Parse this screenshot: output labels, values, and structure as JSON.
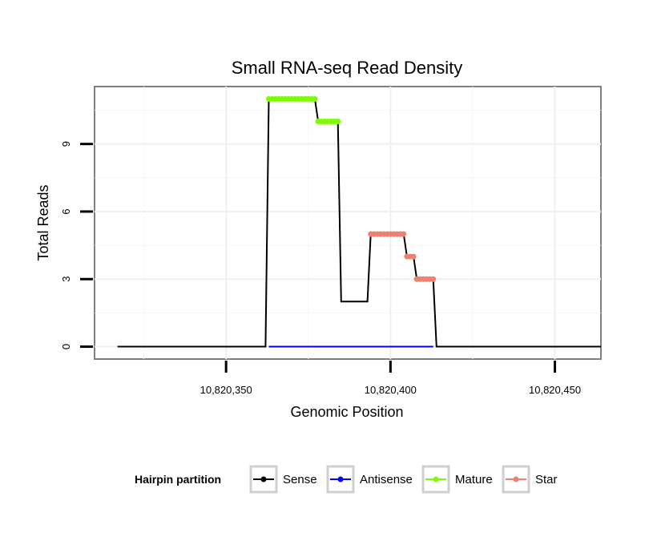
{
  "chart_data": {
    "type": "line",
    "title": "Small RNA-seq Read Density",
    "xlabel": "Genomic Position",
    "ylabel": "Total Reads",
    "xlim": [
      10820310,
      10820464
    ],
    "ylim": [
      -0.55,
      11.55
    ],
    "x_ticks": [
      10820350,
      10820400,
      10820450
    ],
    "x_tick_labels": [
      "10,820,350",
      "10,820,400",
      "10,820,450"
    ],
    "y_ticks": [
      0,
      3,
      6,
      9
    ],
    "y_tick_labels": [
      "0",
      "3",
      "6",
      "9"
    ],
    "grid": true,
    "legend": {
      "title": "Hairpin partition",
      "position": "bottom",
      "entries": [
        {
          "name": "Sense",
          "color": "#000000"
        },
        {
          "name": "Antisense",
          "color": "#0000ff"
        },
        {
          "name": "Mature",
          "color": "#7cfc00"
        },
        {
          "name": "Star",
          "color": "#f08070"
        }
      ]
    },
    "series": [
      {
        "name": "Sense",
        "color": "#000000",
        "x": [
          10820317,
          10820362,
          10820363,
          10820377,
          10820378,
          10820384,
          10820385,
          10820393,
          10820394,
          10820404,
          10820405,
          10820407,
          10820408,
          10820413,
          10820414,
          10820464
        ],
        "y": [
          0,
          0,
          11,
          11,
          10,
          10,
          2,
          2,
          5,
          5,
          4,
          4,
          3,
          3,
          0,
          0
        ]
      },
      {
        "name": "Antisense",
        "color": "#0000ff",
        "x": [
          10820363,
          10820413
        ],
        "y": [
          0,
          0
        ]
      },
      {
        "name": "Mature",
        "color": "#7cfc00",
        "segments": [
          {
            "x": [
              10820363,
              10820377
            ],
            "y": 11
          },
          {
            "x": [
              10820378,
              10820384
            ],
            "y": 10
          }
        ]
      },
      {
        "name": "Star",
        "color": "#f08070",
        "segments": [
          {
            "x": [
              10820394,
              10820404
            ],
            "y": 5
          },
          {
            "x": [
              10820405,
              10820407
            ],
            "y": 4
          },
          {
            "x": [
              10820408,
              10820413
            ],
            "y": 3
          }
        ]
      }
    ]
  }
}
